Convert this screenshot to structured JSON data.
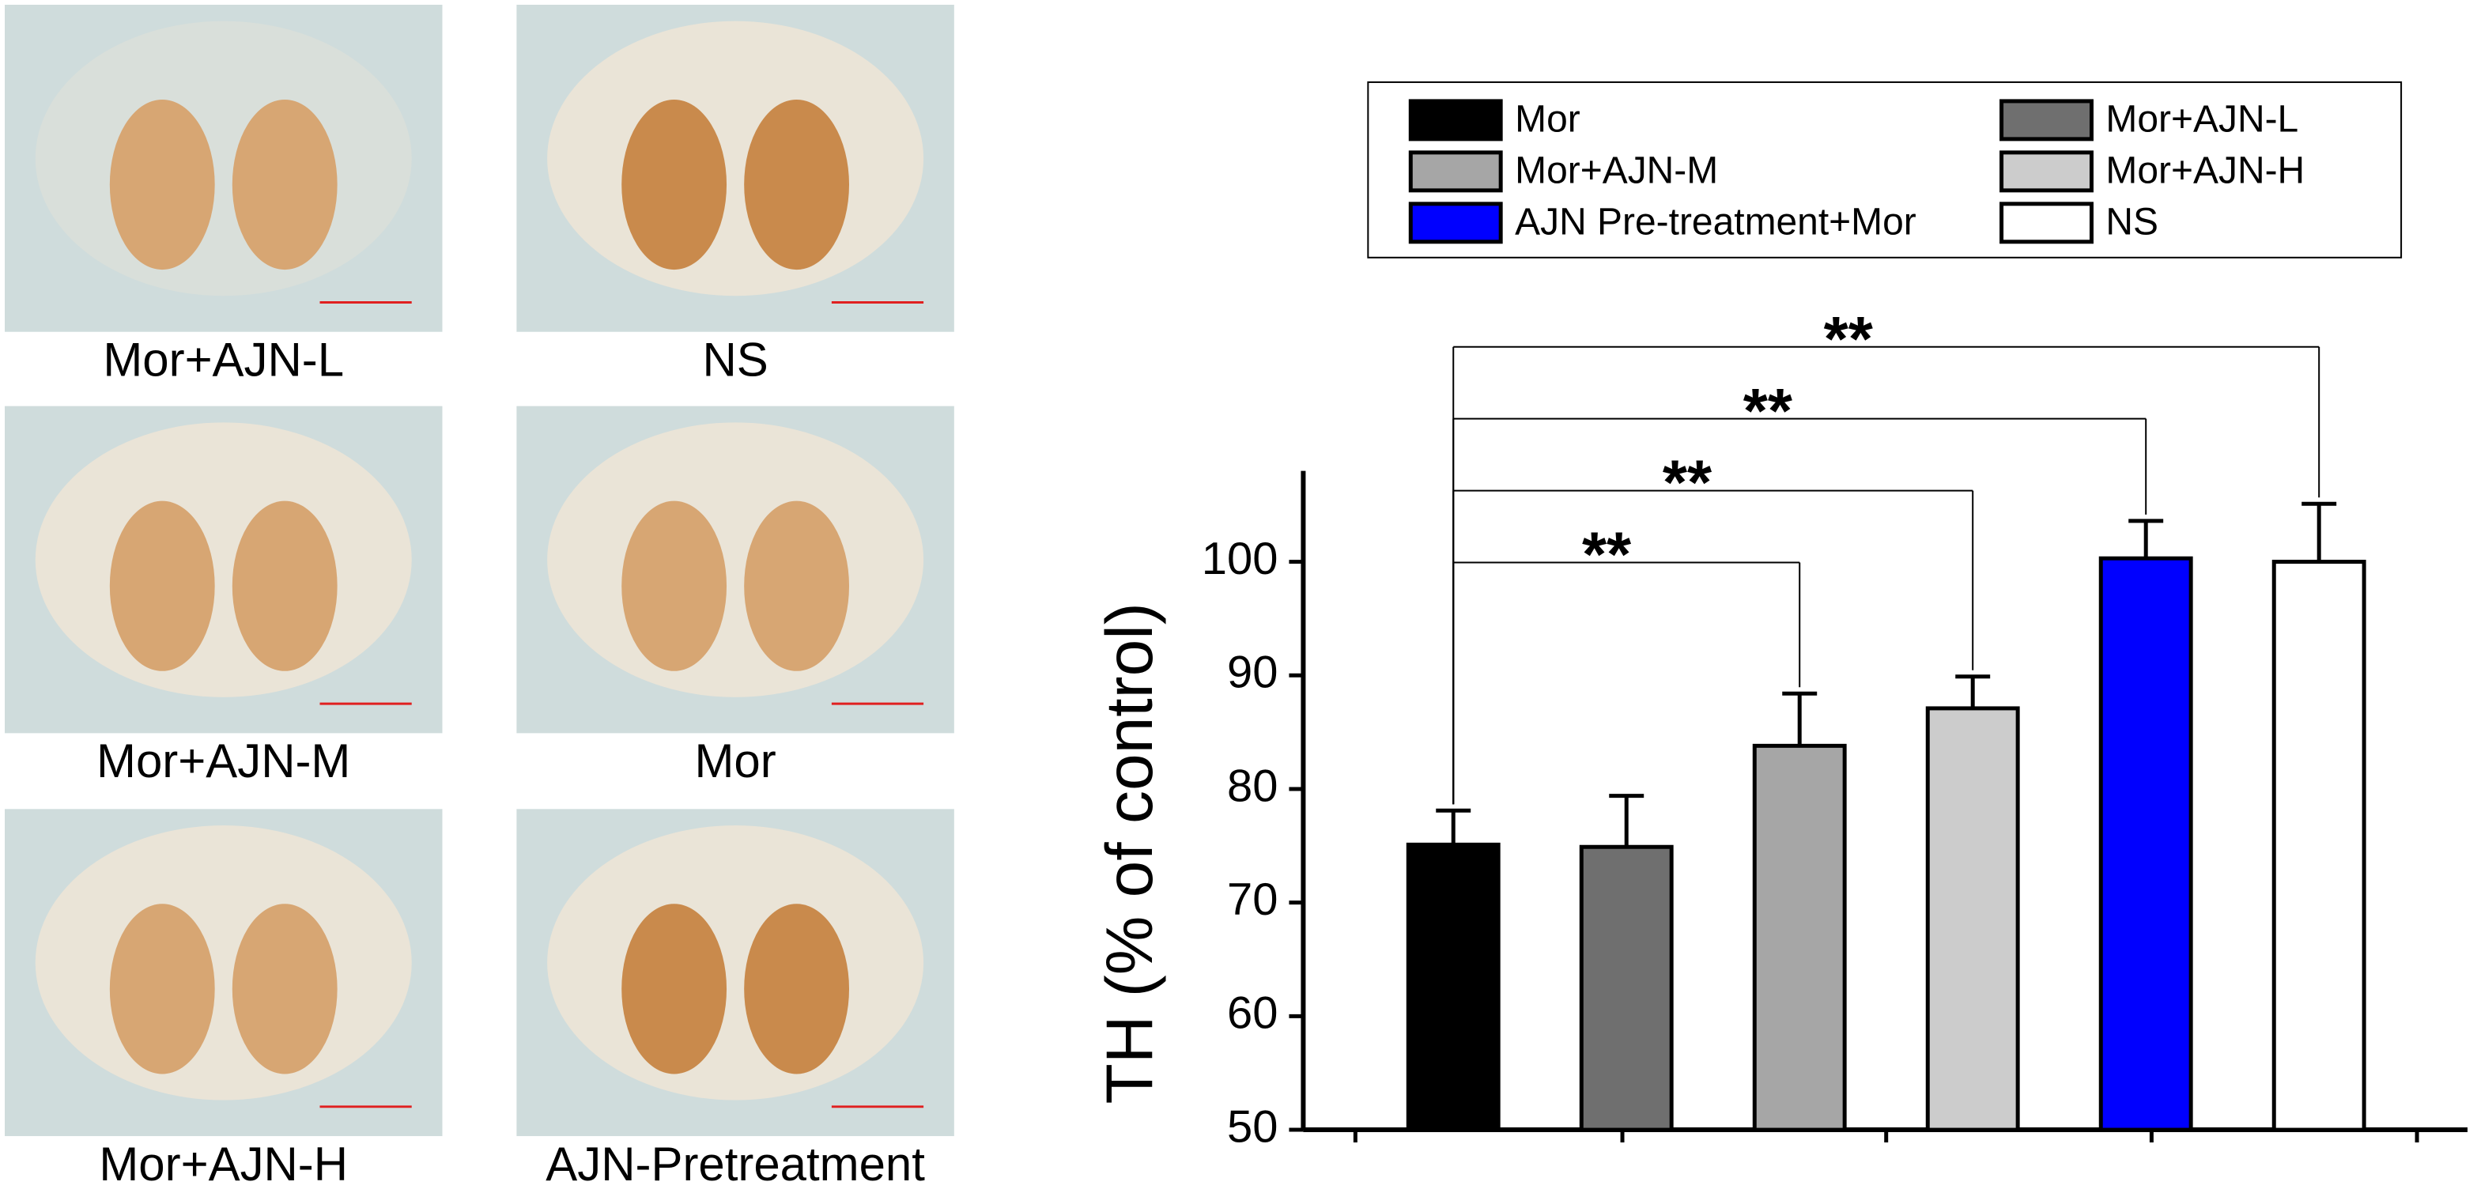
{
  "panels": [
    {
      "label": "Mor+AJN-L"
    },
    {
      "label": "NS"
    },
    {
      "label": "Mor+AJN-M"
    },
    {
      "label": "Mor"
    },
    {
      "label": "Mor+AJN-H"
    },
    {
      "label": "AJN-Pretreatment"
    }
  ],
  "chart_data": {
    "type": "bar",
    "y_label": "TH (% of control)",
    "categories": [
      null
    ],
    "series": [
      {
        "name": "Mor",
        "color": "#000000",
        "values": [
          75.1
        ],
        "errors": [
          3.0
        ]
      },
      {
        "name": "Mor+AJN-L",
        "color": "#6f6f6f",
        "values": [
          74.9
        ],
        "errors": [
          4.5
        ]
      },
      {
        "name": "Mor+AJN-M",
        "color": "#a6a6a6",
        "values": [
          83.8
        ],
        "errors": [
          4.6
        ]
      },
      {
        "name": "Mor+AJN-H",
        "color": "#cccccc",
        "values": [
          87.1
        ],
        "errors": [
          2.8
        ]
      },
      {
        "name": "AJN Pre-treatment+Mor",
        "color": "#0000ff",
        "values": [
          100.3
        ],
        "errors": [
          3.3
        ]
      },
      {
        "name": "NS",
        "color": "#ffffff",
        "values": [
          100.0
        ],
        "errors": [
          5.1
        ]
      }
    ],
    "annotations": [
      {
        "text": "**",
        "from": 0,
        "to": 2
      },
      {
        "text": "**",
        "from": 0,
        "to": 3
      },
      {
        "text": "**",
        "from": 0,
        "to": 4
      },
      {
        "text": "**",
        "from": 0,
        "to": 5
      }
    ],
    "ylim": [
      50,
      108
    ],
    "yticks": [
      50,
      60,
      70,
      80,
      90,
      100
    ]
  }
}
